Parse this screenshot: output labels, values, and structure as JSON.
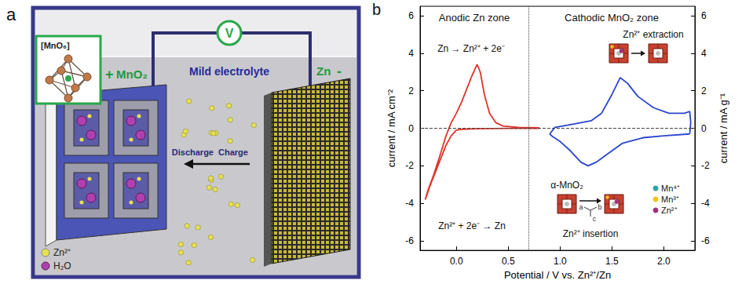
{
  "diagram": {
    "panel_label": "a",
    "inset_label": "[MnO₆]",
    "meter": "V",
    "positive_sign": "+",
    "cathode": "MnO₂",
    "electrolyte": "Mild electrolyte",
    "anode": "Zn",
    "negative_sign": "-",
    "directions": [
      "Discharge",
      "Charge"
    ],
    "legend": [
      {
        "label": "Zn²⁺",
        "color": "#e8e050"
      },
      {
        "label": "H₂O",
        "color": "#b040b0"
      }
    ]
  },
  "chart_data": {
    "type": "line",
    "panel_label": "b",
    "x_label": "Potential / V vs. Zn²⁺/Zn",
    "y_label": "current / mA cm⁻²",
    "y2_label": "current / mA g⁻¹",
    "xlim": [
      -0.35,
      2.3
    ],
    "xticks": [
      {
        "value": 0,
        "label": "0.0"
      },
      {
        "value": 0.5,
        "label": "0.5"
      },
      {
        "value": 1,
        "label": "1.0"
      },
      {
        "value": 1.5,
        "label": "1.5"
      },
      {
        "value": 2,
        "label": "2.0"
      }
    ],
    "ylim": [
      -6.5,
      6.5
    ],
    "yticks": [
      -6,
      -4,
      -2,
      0,
      2,
      4,
      6
    ],
    "y2lim": [
      -6.5,
      6.5
    ],
    "y2ticks": [
      -6,
      -4,
      -2,
      0,
      2,
      4,
      6
    ],
    "grid": false,
    "reference_lines": [
      {
        "axis": "y",
        "value": 0,
        "line_style": "dashed"
      },
      {
        "axis": "x",
        "value": 0.7,
        "line_style": "dotted"
      }
    ],
    "annotations": [
      "Anodic Zn zone",
      "Cathodic MnO₂ zone",
      "Zn → Zn²⁺ + 2e⁻",
      "Zn²⁺ + 2e⁻ → Zn",
      "Zn²⁺ extraction",
      "α-MnO₂",
      "Zn²⁺ insertion"
    ],
    "inset_axes": [
      "a",
      "b",
      "c"
    ],
    "inset_legend": [
      {
        "label": "Mn⁴⁺",
        "color": "#2aa6a6"
      },
      {
        "label": "Mn³⁺",
        "color": "#f0c419"
      },
      {
        "label": "Zn²⁺",
        "color": "#a0307f"
      }
    ],
    "series": [
      {
        "color": "#e0352b",
        "x": [
          0.8,
          0.5,
          0.2,
          0.05,
          0,
          -0.05,
          -0.1,
          -0.15,
          -0.2,
          -0.25,
          -0.3,
          -0.28,
          -0.22,
          -0.15,
          -0.1,
          -0.05,
          0,
          0.05,
          0.1,
          0.15,
          0.2,
          0.23,
          0.27,
          0.32,
          0.38,
          0.45,
          0.6,
          0.8
        ],
        "values": [
          0,
          0,
          -0.02,
          -0.05,
          -0.1,
          -0.4,
          -0.9,
          -1.6,
          -2.3,
          -3.0,
          -3.8,
          -3.4,
          -2.5,
          -1.3,
          -0.4,
          0.3,
          0.8,
          1.4,
          2.1,
          2.8,
          3.4,
          3.0,
          1.8,
          0.8,
          0.3,
          0.12,
          0.05,
          0.03
        ]
      },
      {
        "color": "#2b45d0",
        "axis": "y2",
        "x": [
          2.25,
          2.0,
          1.8,
          1.6,
          1.45,
          1.35,
          1.27,
          1.2,
          1.1,
          1.0,
          0.93,
          0.9,
          0.95,
          1.1,
          1.3,
          1.4,
          1.5,
          1.58,
          1.65,
          1.75,
          1.9,
          2.05,
          2.2,
          2.25,
          2.26,
          2.25
        ],
        "values": [
          -0.3,
          -0.4,
          -0.5,
          -0.8,
          -1.4,
          -1.8,
          -2.0,
          -1.8,
          -1.2,
          -0.7,
          -0.45,
          -0.3,
          0.05,
          0.2,
          0.4,
          0.8,
          1.8,
          2.7,
          2.4,
          1.7,
          1.1,
          0.8,
          0.8,
          0.9,
          0.3,
          -0.3
        ]
      }
    ]
  }
}
